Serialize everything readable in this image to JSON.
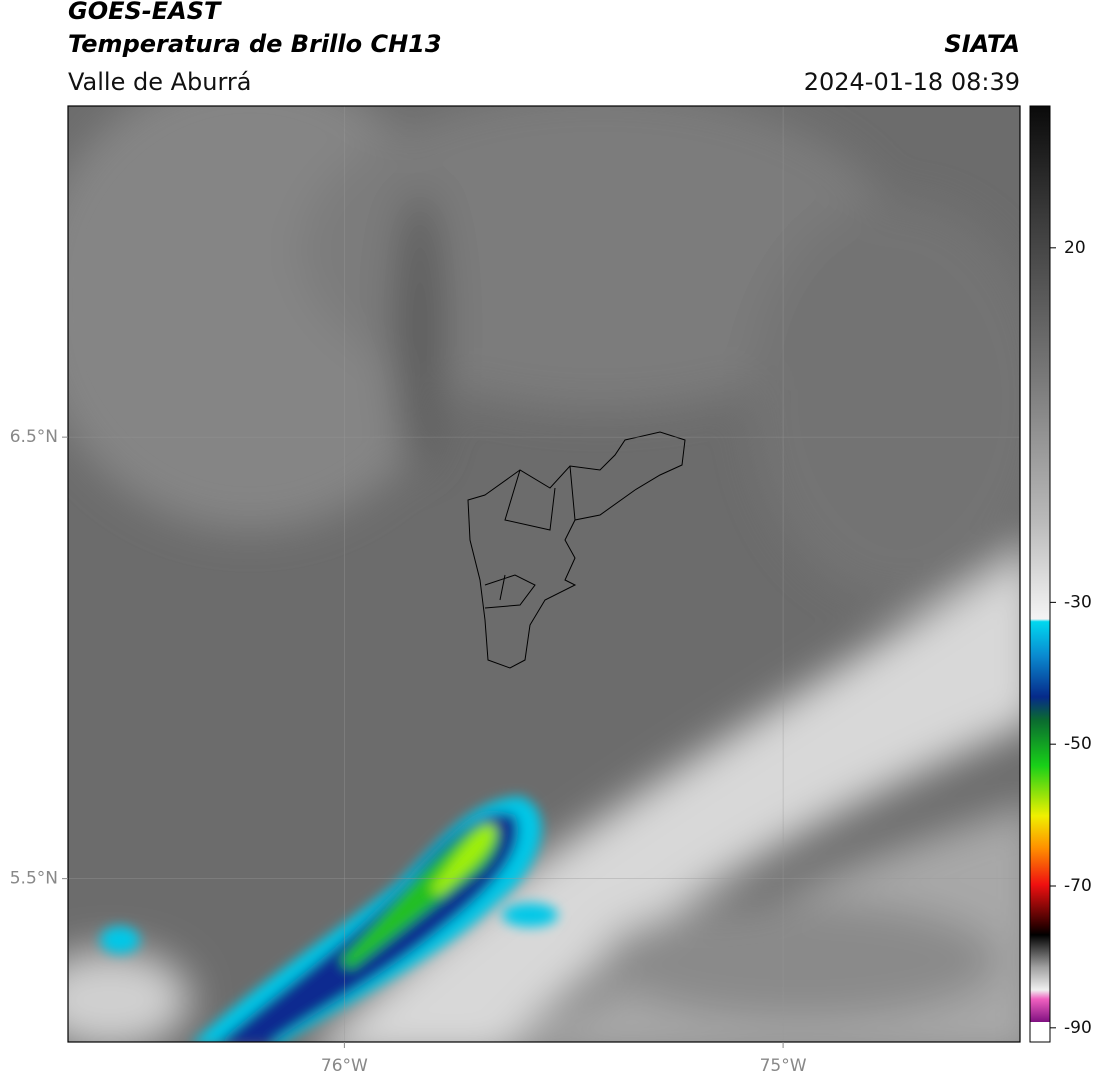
{
  "header": {
    "title": "GOES-EAST",
    "subtitle": "Temperatura de Brillo CH13",
    "region": "Valle de Aburrá",
    "organization": "SIATA",
    "datetime": "2024-01-18 08:39"
  },
  "map": {
    "xlim": [
      -76.63,
      -74.46
    ],
    "ylim": [
      5.13,
      7.25
    ],
    "xticks": [
      {
        "value": -76,
        "label": "76°W"
      },
      {
        "value": -75,
        "label": "75°W"
      }
    ],
    "yticks": [
      {
        "value": 6.5,
        "label": "6.5°N"
      },
      {
        "value": 5.5,
        "label": "5.5°N"
      }
    ]
  },
  "colorbar": {
    "lim": [
      -92,
      40
    ],
    "ticks": [
      20,
      -30,
      -50,
      -70,
      -90
    ]
  }
}
